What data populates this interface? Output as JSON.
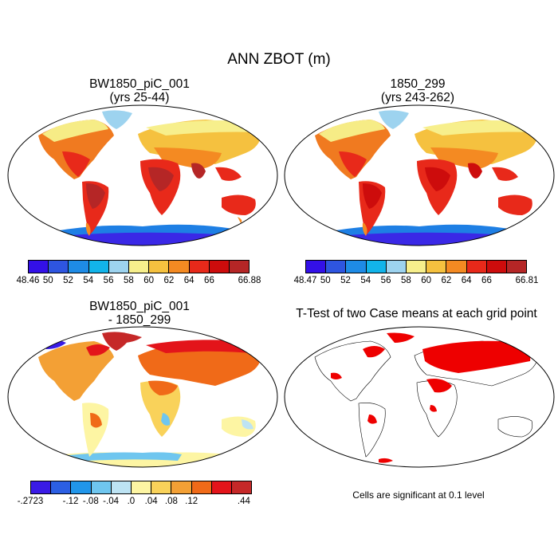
{
  "figure": {
    "title": "ANN ZBOT (m)"
  },
  "panels": [
    {
      "title_line1": "BW1850_piC_001",
      "title_line2": "(yrs 25-44)",
      "colorbar": {
        "colors": [
          "#3310e8",
          "#2e55e0",
          "#1e8be6",
          "#12b4ea",
          "#9dd3ef",
          "#f7ef8c",
          "#f5c13f",
          "#f48a22",
          "#e8291a",
          "#cd0c0c",
          "#b52626"
        ],
        "labels": [
          "48.46",
          "50",
          "52",
          "54",
          "56",
          "58",
          "60",
          "62",
          "64",
          "66",
          "66.88"
        ]
      }
    },
    {
      "title_line1": "1850_299",
      "title_line2": "(yrs 243-262)",
      "colorbar": {
        "colors": [
          "#3310e8",
          "#2e55e0",
          "#1e8be6",
          "#12b4ea",
          "#9dd3ef",
          "#f7ef8c",
          "#f5c13f",
          "#f48a22",
          "#e8291a",
          "#cd0c0c",
          "#b52626"
        ],
        "labels": [
          "48.47",
          "50",
          "52",
          "54",
          "56",
          "58",
          "60",
          "62",
          "64",
          "66",
          "66.81"
        ]
      }
    },
    {
      "title_line1": "BW1850_piC_001",
      "title_line2": "- 1850_299",
      "colorbar": {
        "colors": [
          "#3a1be6",
          "#2c5fe3",
          "#2196ea",
          "#6fc6ef",
          "#bde3f3",
          "#fdf5a3",
          "#f9d25a",
          "#f3a035",
          "#f06a18",
          "#e3141a",
          "#c52828"
        ],
        "labels": [
          "-.2723",
          "-.12",
          "-.08",
          "-.04",
          ".0",
          ".04",
          ".08",
          ".12",
          ".44"
        ]
      }
    },
    {
      "title_line1": "T-Test of two Case means at each grid point",
      "note": "Cells are significant at 0.1 level"
    }
  ]
}
